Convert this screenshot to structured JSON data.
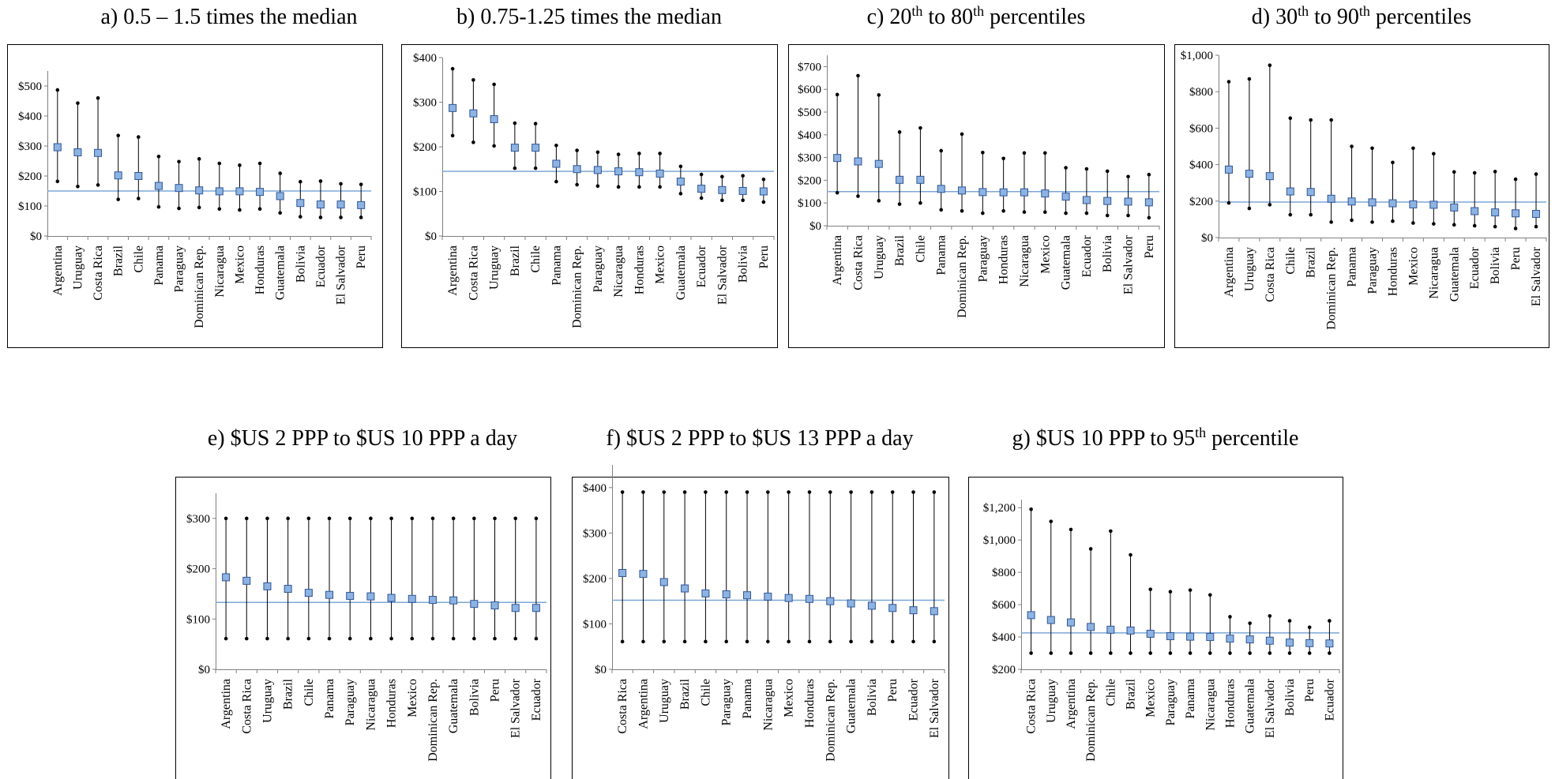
{
  "chart_data": [
    {
      "id": "a",
      "type": "range-dot",
      "title": "a) 0.5 – 1.5 times the median",
      "ylim": [
        0,
        550
      ],
      "yticks": [
        0,
        100,
        200,
        300,
        400,
        500
      ],
      "yticklabels": [
        "$0",
        "$100",
        "$200",
        "$300",
        "$400",
        "$500"
      ],
      "reference_line": 150,
      "categories": [
        "Argentina",
        "Uruguay",
        "Costa Rica",
        "Brazil",
        "Chile",
        "Panama",
        "Paraguay",
        "Dominican Rep.",
        "Nicaragua",
        "Mexico",
        "Honduras",
        "Guatemala",
        "Bolivia",
        "Ecuador",
        "El Salvador",
        "Peru"
      ],
      "high": [
        487,
        443,
        460,
        335,
        330,
        265,
        248,
        257,
        242,
        236,
        242,
        209,
        181,
        183,
        174,
        172
      ],
      "low": [
        182,
        165,
        170,
        122,
        125,
        97,
        92,
        95,
        90,
        87,
        90,
        77,
        64,
        62,
        62,
        62
      ],
      "values": [
        296,
        279,
        277,
        202,
        200,
        167,
        160,
        152,
        149,
        149,
        147,
        133,
        110,
        105,
        105,
        103
      ],
      "grid": false
    },
    {
      "id": "b",
      "type": "range-dot",
      "title": "b) 0.75-1.25 times the median",
      "ylim": [
        0,
        400
      ],
      "yticks": [
        0,
        100,
        200,
        300,
        400
      ],
      "yticklabels": [
        "$0",
        "$100",
        "$200",
        "$300",
        "$400"
      ],
      "reference_line": 145,
      "categories": [
        "Argentina",
        "Costa Rica",
        "Uruguay",
        "Brazil",
        "Chile",
        "Panama",
        "Dominican Rep.",
        "Paraguay",
        "Nicaragua",
        "Honduras",
        "Mexico",
        "Guatemala",
        "Ecuador",
        "El Salvador",
        "Bolivia",
        "Peru"
      ],
      "high": [
        375,
        350,
        340,
        253,
        252,
        203,
        192,
        188,
        183,
        185,
        185,
        156,
        138,
        133,
        135,
        127
      ],
      "low": [
        225,
        210,
        202,
        152,
        152,
        122,
        115,
        112,
        110,
        110,
        110,
        95,
        85,
        80,
        80,
        76
      ],
      "values": [
        287,
        275,
        262,
        198,
        198,
        162,
        150,
        148,
        145,
        143,
        140,
        122,
        106,
        103,
        101,
        100
      ],
      "grid": false
    },
    {
      "id": "c",
      "type": "range-dot",
      "title": "c) 20th to 80th percentiles",
      "title_parts": [
        "c) 20",
        "th",
        " to 80",
        "th",
        " percentiles"
      ],
      "ylim": [
        0,
        750
      ],
      "yticks": [
        0,
        100,
        200,
        300,
        400,
        500,
        600,
        700
      ],
      "yticklabels": [
        "$0",
        "$100",
        "$200",
        "$300",
        "$400",
        "$500",
        "$600",
        "$700"
      ],
      "reference_line": 150,
      "categories": [
        "Argentina",
        "Costa Rica",
        "Uruguay",
        "Brazil",
        "Chile",
        "Panama",
        "Dominican Rep.",
        "Paraguay",
        "Honduras",
        "Nicaragua",
        "Mexico",
        "Guatemala",
        "Ecuador",
        "Bolivia",
        "El Salvador",
        "Peru"
      ],
      "high": [
        577,
        660,
        575,
        412,
        430,
        330,
        403,
        322,
        296,
        320,
        320,
        255,
        250,
        240,
        216,
        225
      ],
      "low": [
        145,
        130,
        110,
        95,
        100,
        70,
        65,
        55,
        65,
        60,
        60,
        55,
        55,
        45,
        45,
        35
      ],
      "values": [
        298,
        283,
        272,
        202,
        202,
        162,
        155,
        148,
        147,
        147,
        142,
        128,
        113,
        109,
        106,
        103
      ],
      "grid": false
    },
    {
      "id": "d",
      "type": "range-dot",
      "title": "d) 30th to 90th percentiles",
      "title_parts": [
        "d) 30",
        "th",
        " to 90",
        "th",
        " percentiles"
      ],
      "ylim": [
        0,
        1000
      ],
      "yticks": [
        0,
        200,
        400,
        600,
        800,
        1000
      ],
      "yticklabels": [
        "$0",
        "$200",
        "$400",
        "$600",
        "$800",
        "$1,000"
      ],
      "reference_line": 195,
      "categories": [
        "Argentina",
        "Uruguay",
        "Costa Rica",
        "Chile",
        "Brazil",
        "Dominican Rep.",
        "Panama",
        "Paraguay",
        "Honduras",
        "Mexico",
        "Nicaragua",
        "Guatemala",
        "Ecuador",
        "Bolivia",
        "Peru",
        "El Salvador"
      ],
      "high": [
        855,
        870,
        945,
        655,
        645,
        645,
        500,
        490,
        412,
        490,
        460,
        360,
        355,
        362,
        320,
        348
      ],
      "low": [
        190,
        160,
        180,
        125,
        125,
        85,
        95,
        85,
        90,
        80,
        75,
        70,
        65,
        60,
        50,
        60
      ],
      "values": [
        373,
        350,
        337,
        253,
        250,
        213,
        198,
        193,
        188,
        182,
        180,
        165,
        145,
        138,
        133,
        130
      ],
      "grid": false
    },
    {
      "id": "e",
      "type": "range-dot",
      "title": "e) $US 2 PPP to $US 10 PPP a day",
      "ylim": [
        0,
        350
      ],
      "yticks": [
        0,
        100,
        200,
        300
      ],
      "yticklabels": [
        "$0",
        "$100",
        "$200",
        "$300"
      ],
      "reference_line": 133,
      "categories": [
        "Argentina",
        "Costa Rica",
        "Uruguay",
        "Brazil",
        "Chile",
        "Panama",
        "Paraguay",
        "Nicaragua",
        "Honduras",
        "Mexico",
        "Dominican Rep.",
        "Guatemala",
        "Bolivia",
        "Peru",
        "El Salvador",
        "Ecuador"
      ],
      "high": [
        300,
        300,
        300,
        300,
        300,
        300,
        300,
        300,
        300,
        300,
        300,
        300,
        300,
        300,
        300,
        300
      ],
      "low": [
        61,
        61,
        61,
        61,
        61,
        61,
        61,
        61,
        61,
        61,
        61,
        61,
        61,
        61,
        61,
        61
      ],
      "values": [
        183,
        176,
        165,
        160,
        152,
        148,
        146,
        145,
        142,
        140,
        138,
        137,
        130,
        127,
        122,
        122
      ],
      "grid": false
    },
    {
      "id": "f",
      "type": "range-dot",
      "title": "f) $US 2 PPP to $US 13 PPP a day",
      "ylim": [
        0,
        450
      ],
      "yticks": [
        0,
        100,
        200,
        300,
        400
      ],
      "yticklabels": [
        "$0",
        "$100",
        "$200",
        "$300",
        "$400"
      ],
      "reference_line": 152,
      "categories": [
        "Costa Rica",
        "Argentina",
        "Uruguay",
        "Brazil",
        "Chile",
        "Paraguay",
        "Panama",
        "Nicaragua",
        "Mexico",
        "Honduras",
        "Dominican Rep.",
        "Guatemala",
        "Bolivia",
        "Peru",
        "Ecuador",
        "El Salvador"
      ],
      "high": [
        390,
        390,
        390,
        390,
        390,
        390,
        390,
        390,
        390,
        390,
        390,
        390,
        390,
        390,
        390,
        390
      ],
      "low": [
        61,
        61,
        61,
        61,
        61,
        61,
        61,
        61,
        61,
        61,
        61,
        61,
        61,
        61,
        61,
        61
      ],
      "values": [
        212,
        210,
        192,
        178,
        167,
        165,
        163,
        160,
        157,
        155,
        150,
        145,
        140,
        135,
        130,
        128
      ],
      "grid": false
    },
    {
      "id": "g",
      "type": "range-dot",
      "title": "g) $US 10 PPP to 95th percentile",
      "title_parts": [
        "g) $US 10 PPP to 95",
        "th",
        " percentile"
      ],
      "ylim": [
        200,
        1250
      ],
      "yticks": [
        200,
        400,
        600,
        800,
        1000,
        1200
      ],
      "yticklabels": [
        "$200",
        "$400",
        "$600",
        "$800",
        "$1,000",
        "$1,200"
      ],
      "reference_line": 425,
      "categories": [
        "Costa Rica",
        "Uruguay",
        "Argentina",
        "Dominican Rep.",
        "Chile",
        "Brazil",
        "Mexico",
        "Paraguay",
        "Panama",
        "Nicaragua",
        "Honduras",
        "Guatemala",
        "El Salvador",
        "Bolivia",
        "Peru",
        "Ecuador"
      ],
      "high": [
        1190,
        1115,
        1065,
        945,
        1055,
        908,
        695,
        680,
        690,
        660,
        525,
        485,
        530,
        500,
        460,
        500
      ],
      "low": [
        300,
        300,
        300,
        300,
        300,
        300,
        300,
        300,
        300,
        300,
        300,
        300,
        300,
        300,
        300,
        300
      ],
      "values": [
        535,
        505,
        490,
        462,
        445,
        440,
        420,
        405,
        402,
        400,
        390,
        385,
        377,
        365,
        362,
        360
      ],
      "grid": false
    }
  ],
  "colors": {
    "marker_fill": "#8db3e2",
    "marker_stroke": "#2f5597",
    "reference_line": "#7ea7d8",
    "whisker": "#000000",
    "frame": "#000000"
  }
}
